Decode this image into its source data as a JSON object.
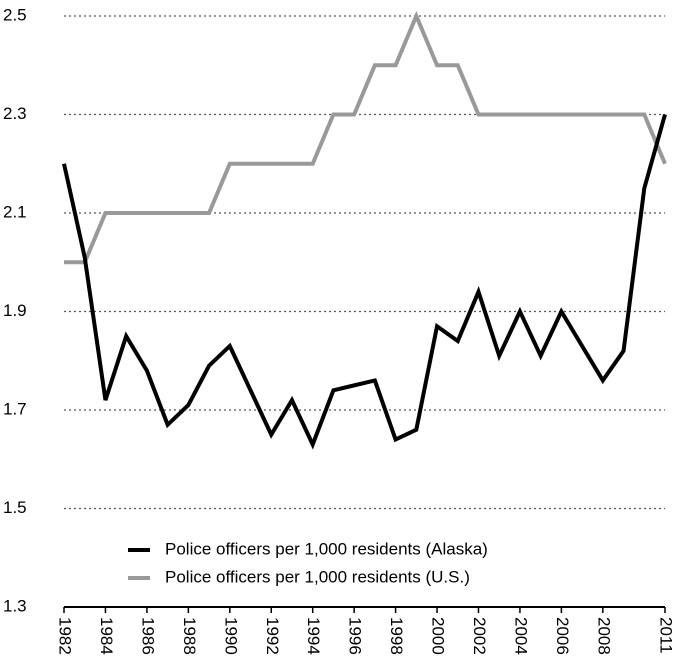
{
  "chart_data": {
    "type": "line",
    "x": [
      1982,
      1983,
      1984,
      1985,
      1986,
      1987,
      1988,
      1989,
      1990,
      1991,
      1992,
      1993,
      1994,
      1995,
      1996,
      1997,
      1998,
      1999,
      2000,
      2001,
      2002,
      2003,
      2004,
      2005,
      2006,
      2007,
      2008,
      2009,
      2010,
      2011
    ],
    "series": [
      {
        "name": "Police officers per 1,000 residents (Alaska)",
        "color": "#000000",
        "values": [
          2.2,
          2.01,
          1.72,
          1.85,
          1.78,
          1.67,
          1.71,
          1.79,
          1.83,
          1.74,
          1.65,
          1.72,
          1.63,
          1.74,
          1.75,
          1.76,
          1.64,
          1.66,
          1.87,
          1.84,
          1.94,
          1.81,
          1.9,
          1.81,
          1.9,
          1.83,
          1.76,
          1.82,
          2.15,
          2.3
        ]
      },
      {
        "name": "Police officers per 1,000 residents (U.S.)",
        "color": "#999999",
        "values": [
          2.0,
          2.0,
          2.1,
          2.1,
          2.1,
          2.1,
          2.1,
          2.1,
          2.2,
          2.2,
          2.2,
          2.2,
          2.2,
          2.3,
          2.3,
          2.4,
          2.4,
          2.5,
          2.4,
          2.4,
          2.3,
          2.3,
          2.3,
          2.3,
          2.3,
          2.3,
          2.3,
          2.3,
          2.3,
          2.2
        ]
      }
    ],
    "xlim": [
      1982,
      2011
    ],
    "xticks": [
      1982,
      1984,
      1986,
      1988,
      1990,
      1992,
      1994,
      1996,
      1998,
      2000,
      2002,
      2004,
      2006,
      2008,
      2011
    ],
    "ylim": [
      1.3,
      2.5
    ],
    "yticks": [
      1.3,
      1.5,
      1.7,
      1.9,
      2.1,
      2.3,
      2.5
    ],
    "grid": true,
    "legend": "lower left"
  }
}
